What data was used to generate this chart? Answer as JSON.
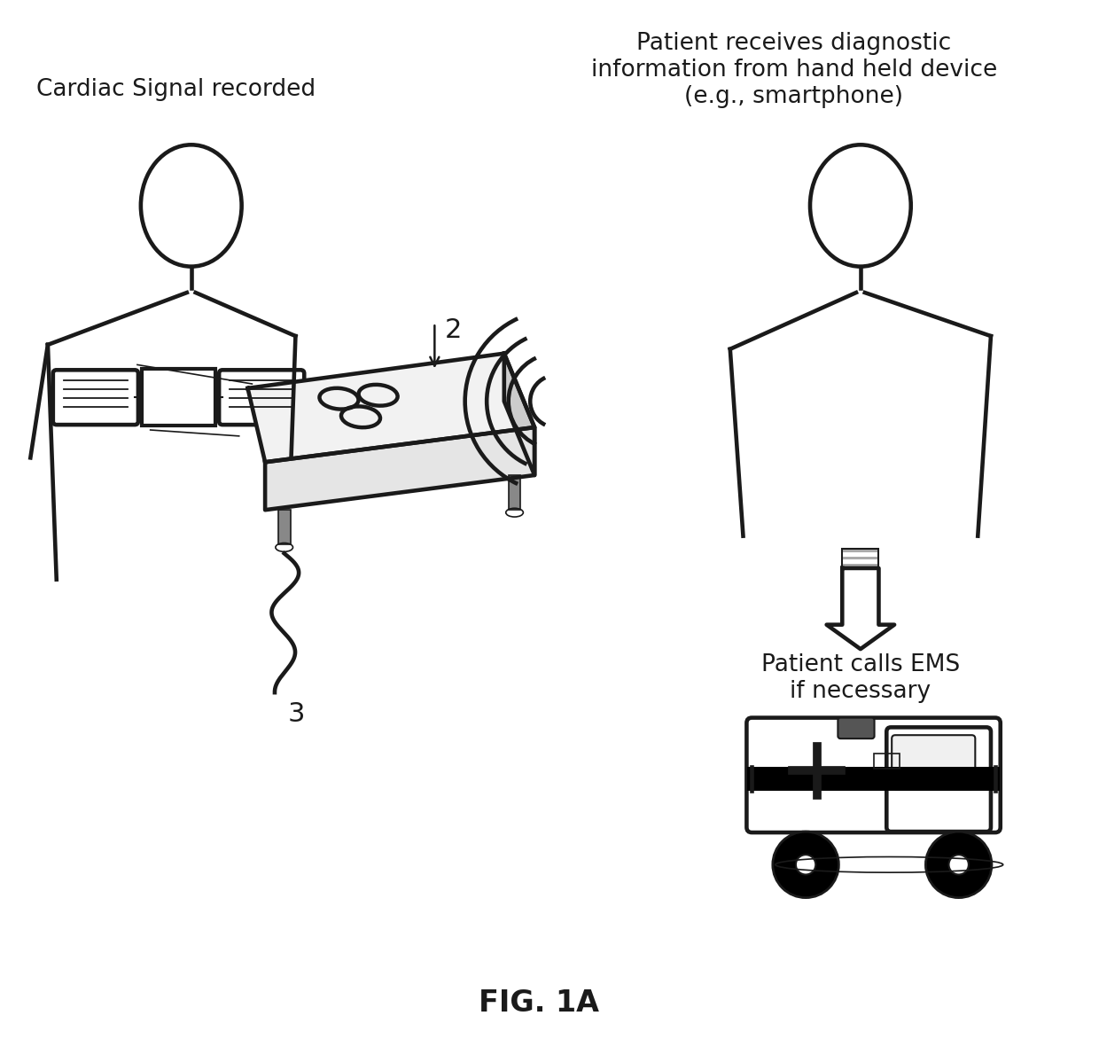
{
  "title": "FIG. 1A",
  "label_cardiac": "Cardiac Signal recorded",
  "label_patient_top": "Patient receives diagnostic\ninformation from hand held device\n(e.g., smartphone)",
  "label_patient_bottom": "Patient calls EMS\nif necessary",
  "label_2": "2",
  "label_3": "3",
  "bg_color": "#ffffff",
  "line_color": "#1a1a1a",
  "lw": 2.2,
  "font_size_labels": 19,
  "font_size_title": 24
}
